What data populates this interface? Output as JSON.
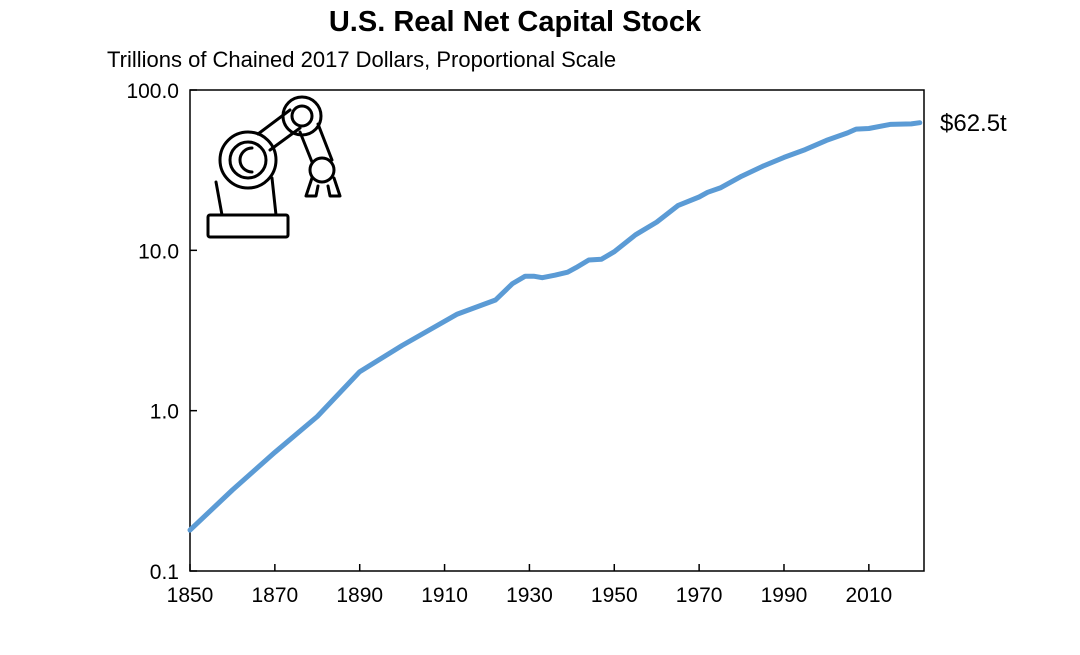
{
  "colors": {
    "series": "#5b9bd5",
    "axis": "#000000",
    "icon": "#000000"
  },
  "icon": "robotic-arm-icon",
  "chart_data": {
    "type": "line",
    "title": "U.S. Real Net Capital Stock",
    "subtitle": "Trillions of Chained 2017 Dollars, Proportional Scale",
    "xlabel": "",
    "ylabel": "",
    "xlim": [
      1850,
      2023
    ],
    "ylim": [
      0.1,
      100
    ],
    "y_scale": "log",
    "grid": false,
    "legend": "none",
    "x_ticks": [
      1850,
      1870,
      1890,
      1910,
      1930,
      1950,
      1970,
      1990,
      2010
    ],
    "y_ticks": [
      {
        "value": 0.1,
        "label": "0.1"
      },
      {
        "value": 1,
        "label": "1.0"
      },
      {
        "value": 10,
        "label": "10.0"
      },
      {
        "value": 100,
        "label": "100.0"
      }
    ],
    "end_label": "$62.5t",
    "series": [
      {
        "x": [
          1850,
          1860,
          1870,
          1880,
          1890,
          1900,
          1913,
          1922,
          1926,
          1929,
          1931,
          1933,
          1936,
          1939,
          1941,
          1944,
          1947,
          1950,
          1955,
          1960,
          1965,
          1970,
          1972,
          1975,
          1980,
          1985,
          1990,
          1995,
          2000,
          2005,
          2007,
          2010,
          2015,
          2020,
          2022
        ],
        "y": [
          0.18,
          0.32,
          0.55,
          0.92,
          1.75,
          2.55,
          4.0,
          4.9,
          6.2,
          6.9,
          6.9,
          6.75,
          7.0,
          7.3,
          7.8,
          8.7,
          8.8,
          9.8,
          12.5,
          15.0,
          19.0,
          21.5,
          23.0,
          24.5,
          29.0,
          33.5,
          38.0,
          42.5,
          48.5,
          54.0,
          57.0,
          57.5,
          61.0,
          61.5,
          62.5
        ]
      }
    ]
  }
}
